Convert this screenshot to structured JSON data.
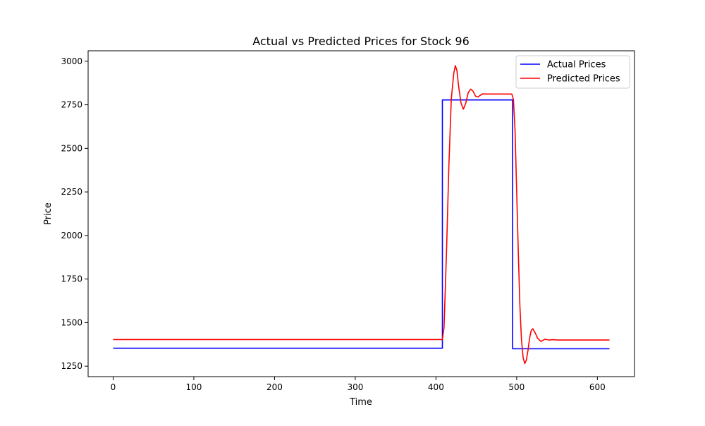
{
  "chart_data": {
    "type": "line",
    "title": "Actual vs Predicted Prices for Stock 96",
    "xlabel": "Time",
    "ylabel": "Price",
    "xlim": [
      -31,
      646
    ],
    "ylim": [
      1190,
      3060
    ],
    "xticks": [
      0,
      100,
      200,
      300,
      400,
      500,
      600
    ],
    "yticks": [
      1250,
      1500,
      1750,
      2000,
      2250,
      2500,
      2750,
      3000
    ],
    "grid": false,
    "legend_position": "top-right",
    "series": [
      {
        "name": "Actual Prices",
        "color": "#0000ff",
        "x": [
          0,
          408,
          408,
          495,
          495,
          615
        ],
        "y": [
          1353,
          1353,
          2778,
          2778,
          1350,
          1350
        ]
      },
      {
        "name": "Predicted Prices",
        "color": "#ff0000",
        "x": [
          0,
          408,
          410,
          413,
          416,
          419,
          422,
          424,
          426,
          428,
          431,
          434,
          437,
          440,
          443,
          446,
          449,
          452,
          455,
          458,
          461,
          465,
          470,
          480,
          490,
          494,
          496,
          498,
          500,
          502,
          504,
          506,
          508,
          510,
          512,
          514,
          516,
          518,
          520,
          523,
          526,
          530,
          535,
          540,
          545,
          550,
          560,
          580,
          600,
          615
        ],
        "y": [
          1403,
          1403,
          1470,
          1900,
          2400,
          2780,
          2930,
          2975,
          2945,
          2860,
          2760,
          2725,
          2760,
          2820,
          2840,
          2828,
          2800,
          2795,
          2805,
          2813,
          2812,
          2812,
          2812,
          2812,
          2812,
          2812,
          2780,
          2600,
          2250,
          1900,
          1600,
          1400,
          1300,
          1265,
          1285,
          1340,
          1410,
          1455,
          1465,
          1440,
          1410,
          1392,
          1405,
          1400,
          1402,
          1400,
          1400,
          1400,
          1400,
          1400
        ]
      }
    ]
  }
}
